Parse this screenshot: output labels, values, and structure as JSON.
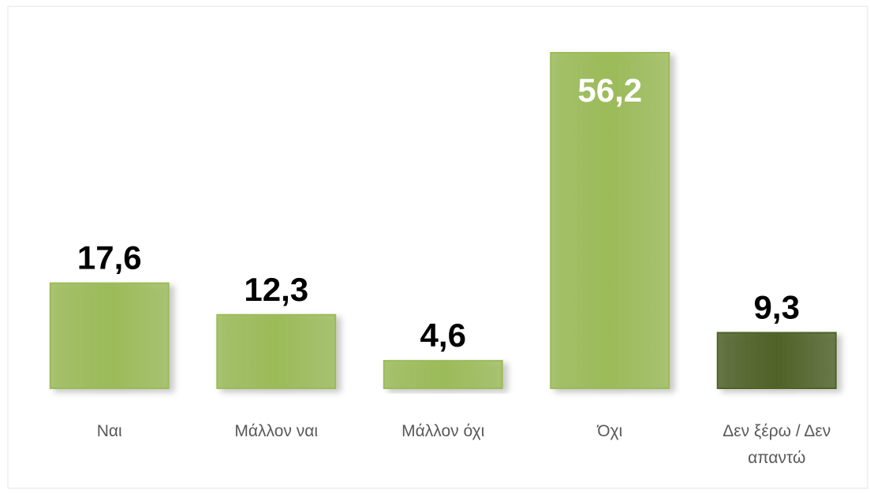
{
  "chart_data": {
    "type": "bar",
    "categories": [
      "Ναι",
      "Μάλλον ναι",
      "Μάλλον όχι",
      "Όχι",
      "Δεν ξέρω / Δεν απαντώ"
    ],
    "values": [
      17.6,
      12.3,
      4.6,
      56.2,
      9.3
    ],
    "value_labels": [
      "17,6",
      "12,3",
      "4,6",
      "56,2",
      "9,3"
    ],
    "colors": [
      "#9bbb59",
      "#9bbb59",
      "#9bbb59",
      "#9bbb59",
      "#4f6228"
    ]
  }
}
